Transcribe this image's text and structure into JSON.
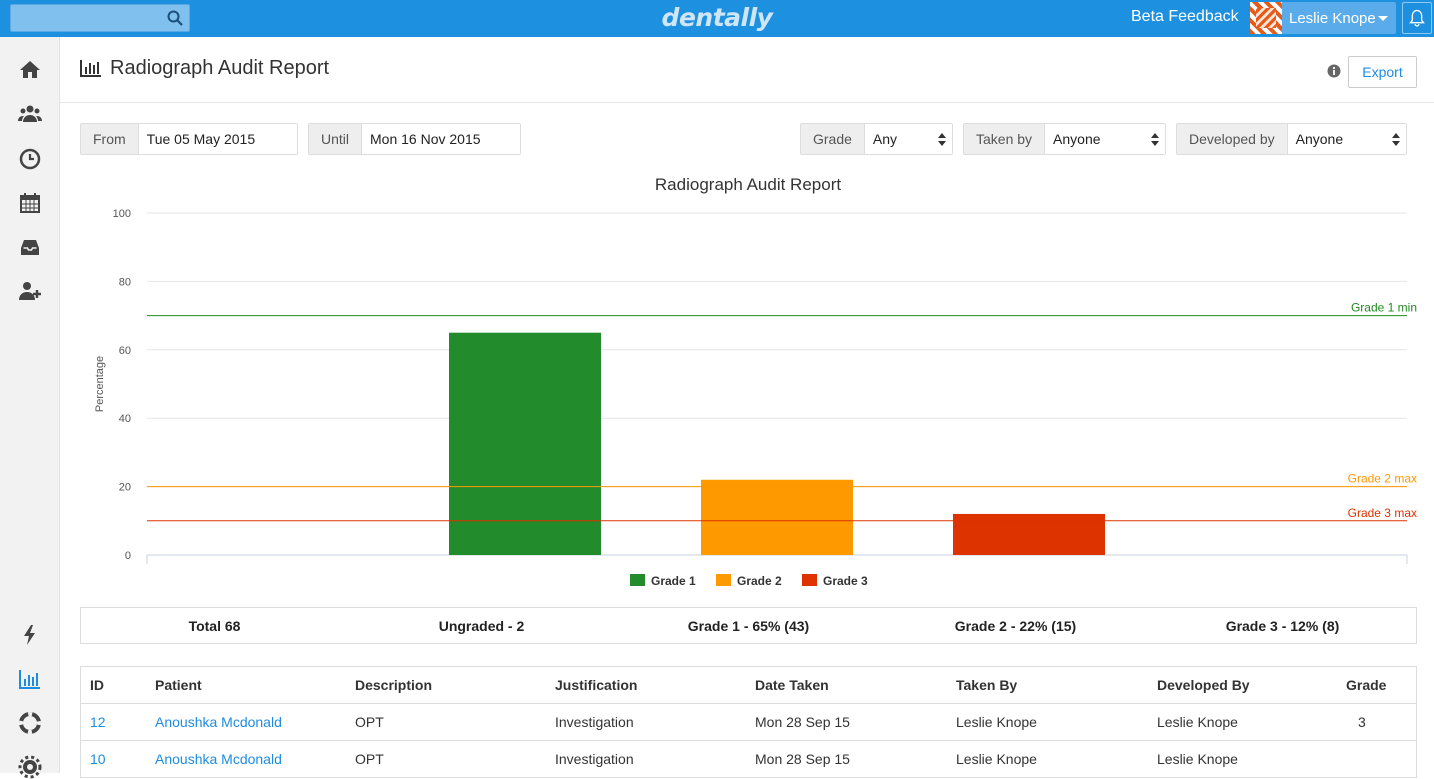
{
  "topbar": {
    "search": {
      "placeholder": "",
      "value": ""
    },
    "logo": "dentally",
    "beta_feedback": "Beta Feedback",
    "user_name": "Leslie Knope"
  },
  "sidebar": {
    "items": [
      "home-icon",
      "users-icon",
      "clock-icon",
      "calendar-icon",
      "inbox-icon",
      "add-user-icon",
      "lightning-icon",
      "bar-chart-icon",
      "lifebuoy-icon",
      "gear-icon"
    ]
  },
  "header": {
    "title": "Radiograph Audit Report",
    "export_label": "Export"
  },
  "filters": {
    "from_label": "From",
    "from_value": "Tue 05 May 2015",
    "until_label": "Until",
    "until_value": "Mon 16 Nov 2015",
    "grade_label": "Grade",
    "grade_value": "Any",
    "taken_by_label": "Taken by",
    "taken_by_value": "Anyone",
    "developed_by_label": "Developed by",
    "developed_by_value": "Anyone"
  },
  "chart_data": {
    "type": "bar",
    "title": "Radiograph Audit Report",
    "ylabel": "Percentage",
    "xlabel": "",
    "ylim": [
      0,
      100
    ],
    "yticks": [
      0,
      20,
      40,
      60,
      80,
      100
    ],
    "grid": true,
    "legend_position": "bottom",
    "series": [
      {
        "name": "Grade 1",
        "value": 65,
        "color": "#228b2b"
      },
      {
        "name": "Grade 2",
        "value": 22,
        "color": "#ff9900"
      },
      {
        "name": "Grade 3",
        "value": 12,
        "color": "#dd3300"
      }
    ],
    "reference_lines": [
      {
        "label": "Grade 1 min",
        "value": 70,
        "color": "#228b22"
      },
      {
        "label": "Grade 2 max",
        "value": 20,
        "color": "#ff9900"
      },
      {
        "label": "Grade 3 max",
        "value": 10,
        "color": "#dd3300"
      }
    ]
  },
  "summary": {
    "total": "Total 68",
    "ungraded": "Ungraded - 2",
    "grade1": "Grade 1 - 65% (43)",
    "grade2": "Grade 2 - 22% (15)",
    "grade3": "Grade 3 - 12% (8)"
  },
  "table": {
    "headers": {
      "id": "ID",
      "patient": "Patient",
      "description": "Description",
      "justification": "Justification",
      "date_taken": "Date Taken",
      "taken_by": "Taken By",
      "developed_by": "Developed By",
      "grade": "Grade"
    },
    "rows": [
      {
        "id": "12",
        "patient": "Anoushka Mcdonald",
        "description": "OPT",
        "justification": "Investigation",
        "date_taken": "Mon 28 Sep 15",
        "taken_by": "Leslie Knope",
        "developed_by": "Leslie Knope",
        "grade": "3"
      },
      {
        "id": "10",
        "patient": "Anoushka Mcdonald",
        "description": "OPT",
        "justification": "Investigation",
        "date_taken": "Mon 28 Sep 15",
        "taken_by": "Leslie Knope",
        "developed_by": "Leslie Knope",
        "grade": ""
      }
    ]
  }
}
